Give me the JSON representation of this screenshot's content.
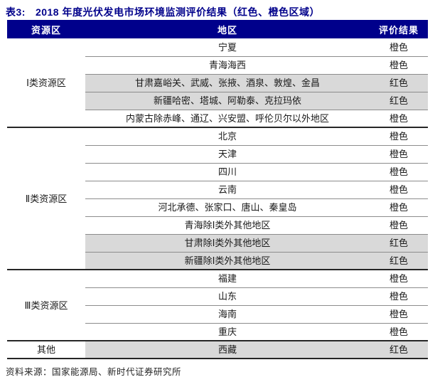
{
  "title": {
    "prefix": "表3:",
    "text": "2018 年度光伏发电市场环境监测评价结果（红色、橙色区域）"
  },
  "colors": {
    "header_navy": "#00008B",
    "title_navy": "#00008B",
    "shaded_row_gray": "#D9D9D9",
    "result_red_label": "红色",
    "result_orange_label": "橙色"
  },
  "table": {
    "headers": [
      "资源区",
      "地区",
      "评价结果"
    ],
    "groups": [
      {
        "zone": "Ⅰ类资源区",
        "rows": [
          {
            "region": "宁夏",
            "result": "橙色",
            "shaded": false
          },
          {
            "region": "青海海西",
            "result": "橙色",
            "shaded": false
          },
          {
            "region": "甘肃嘉峪关、武威、张掖、酒泉、敦煌、金昌",
            "result": "红色",
            "shaded": true
          },
          {
            "region": "新疆哈密、塔城、阿勒泰、克拉玛依",
            "result": "红色",
            "shaded": true
          },
          {
            "region": "内蒙古除赤峰、通辽、兴安盟、呼伦贝尔以外地区",
            "result": "橙色",
            "shaded": false
          }
        ]
      },
      {
        "zone": "Ⅱ类资源区",
        "rows": [
          {
            "region": "北京",
            "result": "橙色",
            "shaded": false
          },
          {
            "region": "天津",
            "result": "橙色",
            "shaded": false
          },
          {
            "region": "四川",
            "result": "橙色",
            "shaded": false
          },
          {
            "region": "云南",
            "result": "橙色",
            "shaded": false
          },
          {
            "region": "河北承德、张家口、唐山、秦皇岛",
            "result": "橙色",
            "shaded": false
          },
          {
            "region": "青海除Ⅰ类外其他地区",
            "result": "橙色",
            "shaded": false
          },
          {
            "region": "甘肃除Ⅰ类外其他地区",
            "result": "红色",
            "shaded": true
          },
          {
            "region": "新疆除Ⅰ类外其他地区",
            "result": "红色",
            "shaded": true
          }
        ]
      },
      {
        "zone": "Ⅲ类资源区",
        "rows": [
          {
            "region": "福建",
            "result": "橙色",
            "shaded": false
          },
          {
            "region": "山东",
            "result": "橙色",
            "shaded": false
          },
          {
            "region": "海南",
            "result": "橙色",
            "shaded": false
          },
          {
            "region": "重庆",
            "result": "橙色",
            "shaded": false
          }
        ]
      },
      {
        "zone": "其他",
        "rows": [
          {
            "region": "西藏",
            "result": "红色",
            "shaded": true
          }
        ]
      }
    ]
  },
  "footer": {
    "source": "资料来源：国家能源局、新时代证券研究所"
  }
}
